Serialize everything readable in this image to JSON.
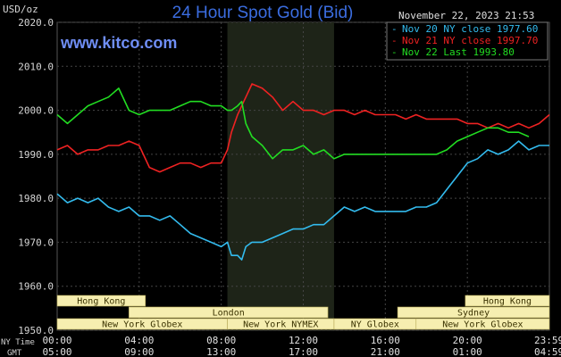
{
  "chart_data": {
    "type": "line",
    "title": "24 Hour Spot Gold (Bid)",
    "watermark": "www.kitco.com",
    "timestamp": "November 22, 2023 21:53",
    "ylabel": "USD/oz",
    "ylim": [
      1950,
      2020
    ],
    "yticks": [
      "2020.0",
      "2010.0",
      "2000.0",
      "1990.0",
      "1980.0",
      "1970.0",
      "1960.0",
      "1950.0"
    ],
    "xlim": [
      0,
      24
    ],
    "x_unit": "hours (NY time)",
    "xticks": [
      {
        "ny": "00:00",
        "gmt": "05:00"
      },
      {
        "ny": "04:00",
        "gmt": "09:00"
      },
      {
        "ny": "08:00",
        "gmt": "13:00"
      },
      {
        "ny": "12:00",
        "gmt": "17:00"
      },
      {
        "ny": "16:00",
        "gmt": "21:00"
      },
      {
        "ny": "20:00",
        "gmt": "01:00"
      },
      {
        "ny": "23:59",
        "gmt": "04:59"
      }
    ],
    "xaxis_row_labels": [
      "NY Time",
      "GMT"
    ],
    "grid": true,
    "highlight_hours": [
      8.3,
      13.5
    ],
    "colors": {
      "background": "#000000",
      "grid": "#444444",
      "highlight": "#1e2418",
      "session_bar": "#f6eeb0",
      "title": "#3b6de0"
    },
    "legend_position": "top-right",
    "series": [
      {
        "name": "Nov 20 NY close 1977.60",
        "color": "#33bbee",
        "x": [
          0,
          0.5,
          1,
          1.5,
          2,
          2.5,
          3,
          3.5,
          4,
          4.5,
          5,
          5.5,
          6,
          6.5,
          7,
          7.5,
          8,
          8.3,
          8.5,
          8.8,
          9,
          9.2,
          9.5,
          10,
          10.5,
          11,
          11.5,
          12,
          12.5,
          13,
          13.5,
          14,
          14.5,
          15,
          15.5,
          16,
          16.5,
          17,
          17.5,
          18,
          18.5,
          19,
          19.5,
          20,
          20.5,
          21,
          21.5,
          22,
          22.5,
          23,
          23.5,
          24
        ],
        "y": [
          1981,
          1979,
          1980,
          1979,
          1980,
          1978,
          1977,
          1978,
          1976,
          1976,
          1975,
          1976,
          1974,
          1972,
          1971,
          1970,
          1969,
          1970,
          1967,
          1967,
          1966,
          1969,
          1970,
          1970,
          1971,
          1972,
          1973,
          1973,
          1974,
          1974,
          1976,
          1978,
          1977,
          1978,
          1977,
          1977,
          1977,
          1977,
          1978,
          1978,
          1979,
          1982,
          1985,
          1988,
          1989,
          1991,
          1990,
          1991,
          1993,
          1991,
          1992,
          1992
        ]
      },
      {
        "name": "Nov 21 NY close 1997.70",
        "color": "#ee2222",
        "x": [
          0,
          0.5,
          1,
          1.5,
          2,
          2.5,
          3,
          3.5,
          4,
          4.5,
          5,
          5.5,
          6,
          6.5,
          7,
          7.5,
          8,
          8.3,
          8.5,
          8.8,
          9,
          9.2,
          9.5,
          10,
          10.5,
          11,
          11.5,
          12,
          12.5,
          13,
          13.5,
          14,
          14.5,
          15,
          15.5,
          16,
          16.5,
          17,
          17.5,
          18,
          18.5,
          19,
          19.5,
          20,
          20.5,
          21,
          21.5,
          22,
          22.5,
          23,
          23.5,
          24
        ],
        "y": [
          1991,
          1992,
          1990,
          1991,
          1991,
          1992,
          1992,
          1993,
          1992,
          1987,
          1986,
          1987,
          1988,
          1988,
          1987,
          1988,
          1988,
          1991,
          1995,
          1999,
          2001,
          2003,
          2006,
          2005,
          2003,
          2000,
          2002,
          2000,
          2000,
          1999,
          2000,
          2000,
          1999,
          2000,
          1999,
          1999,
          1999,
          1998,
          1999,
          1998,
          1998,
          1998,
          1998,
          1997,
          1997,
          1996,
          1997,
          1996,
          1997,
          1996,
          1997,
          1999
        ]
      },
      {
        "name": "Nov 22 Last 1993.80",
        "color": "#22dd22",
        "x": [
          0,
          0.5,
          1,
          1.5,
          2,
          2.5,
          3,
          3.5,
          4,
          4.5,
          5,
          5.5,
          6,
          6.5,
          7,
          7.5,
          8,
          8.3,
          8.5,
          8.8,
          9,
          9.2,
          9.5,
          10,
          10.5,
          11,
          11.5,
          12,
          12.5,
          13,
          13.5,
          14,
          14.5,
          15,
          15.5,
          16,
          16.5,
          17,
          17.5,
          18,
          18.5,
          19,
          19.5,
          20,
          20.5,
          21,
          21.5,
          22,
          22.5,
          23
        ],
        "y": [
          1999,
          1997,
          1999,
          2001,
          2002,
          2003,
          2005,
          2000,
          1999,
          2000,
          2000,
          2000,
          2001,
          2002,
          2002,
          2001,
          2001,
          2000,
          2000,
          2001,
          2002,
          1997,
          1994,
          1992,
          1989,
          1991,
          1991,
          1992,
          1990,
          1991,
          1989,
          1990,
          1990,
          1990,
          1990,
          1990,
          1990,
          1990,
          1990,
          1990,
          1990,
          1991,
          1993,
          1994,
          1995,
          1996,
          1996,
          1995,
          1995,
          1994
        ]
      }
    ],
    "sessions": {
      "row1": [
        {
          "label": "Hong Kong",
          "start": 0,
          "end": 4.3
        },
        {
          "label": "Hong Kong",
          "start": 19.9,
          "end": 24
        }
      ],
      "row2": [
        {
          "label": "London",
          "start": 3.5,
          "end": 13.2
        },
        {
          "label": "Sydney",
          "start": 16.6,
          "end": 24
        }
      ],
      "row3": [
        {
          "label": "New York Globex",
          "start": 0,
          "end": 8.3
        },
        {
          "label": "New York NYMEX",
          "start": 8.3,
          "end": 13.5
        },
        {
          "label": "NY Globex",
          "start": 13.5,
          "end": 17.5
        },
        {
          "label": "New York Globex",
          "start": 17.5,
          "end": 24
        }
      ]
    }
  }
}
